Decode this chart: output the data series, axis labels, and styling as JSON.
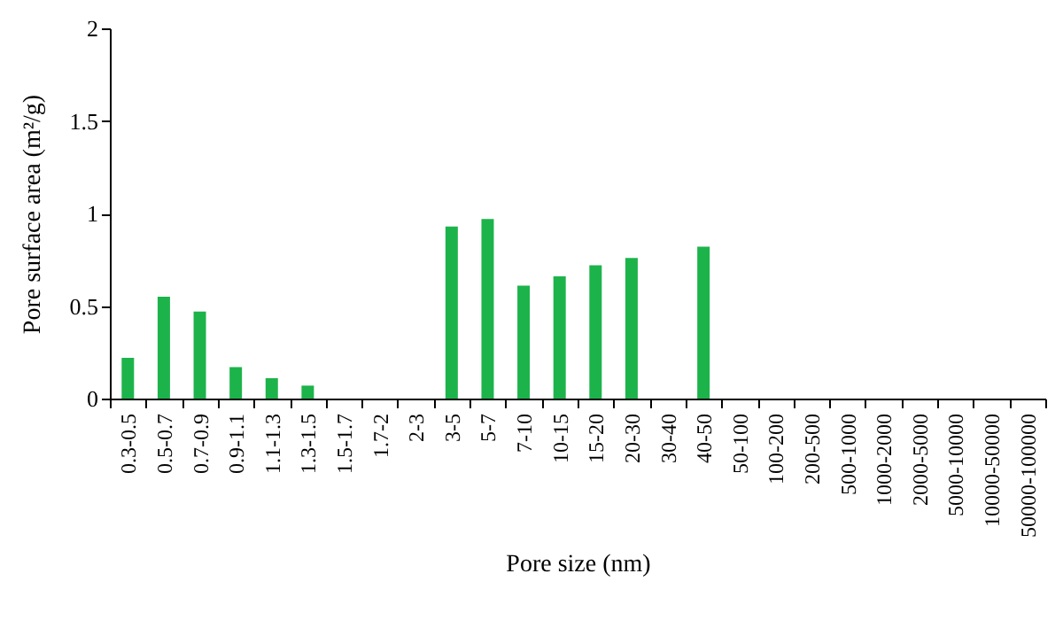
{
  "chart_data": {
    "type": "bar",
    "xlabel": "Pore size (nm)",
    "ylabel": "Pore surface area (m²/g)",
    "categories": [
      "0.3-0.5",
      "0.5-0.7",
      "0.7-0.9",
      "0.9-1.1",
      "1.1-1.3",
      "1.3-1.5",
      "1.5-1.7",
      "1.7-2",
      "2-3",
      "3-5",
      "5-7",
      "7-10",
      "10-15",
      "15-20",
      "20-30",
      "30-40",
      "40-50",
      "50-100",
      "100-200",
      "200-500",
      "500-1000",
      "1000-2000",
      "2000-5000",
      "5000-10000",
      "10000-50000",
      "50000-100000"
    ],
    "values": [
      0.22,
      0.55,
      0.47,
      0.17,
      0.11,
      0.07,
      0,
      0,
      0,
      0.93,
      0.97,
      0.61,
      0.66,
      0.72,
      0.76,
      0,
      0.82,
      0,
      0,
      0,
      0,
      0,
      0,
      0,
      0,
      0
    ],
    "color": "#1db34b",
    "ylim": [
      0,
      2
    ],
    "yticks": [
      0,
      0.5,
      1,
      1.5,
      2
    ],
    "grid": false
  }
}
